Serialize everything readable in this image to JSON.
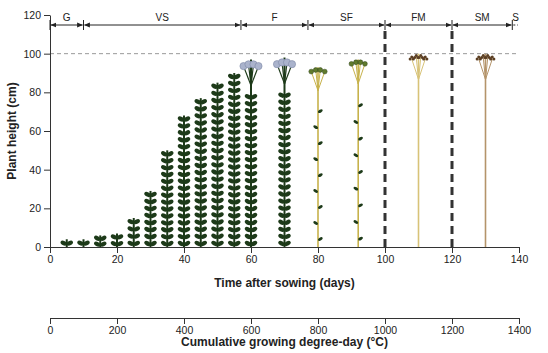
{
  "chart_data": {
    "type": "bar",
    "x_label": "Time after sowing (days)",
    "y_label": "Plant height (cm)",
    "xlim": [
      0,
      140
    ],
    "xticks": [
      0,
      20,
      40,
      60,
      80,
      100,
      120,
      140
    ],
    "ylim": [
      0,
      120
    ],
    "yticks": [
      0,
      20,
      40,
      60,
      80,
      100,
      120
    ],
    "x2_label": "Cumulative growing degree-day (°C)",
    "x2lim": [
      0,
      1400
    ],
    "x2ticks": [
      0,
      200,
      400,
      600,
      800,
      1000,
      1200,
      1400
    ],
    "grid": false,
    "series": [
      {
        "color": "#1d3a19",
        "marker": "leaves",
        "x": [
          5,
          10,
          15,
          20,
          25,
          30,
          35,
          40,
          45,
          50,
          55
        ],
        "values": [
          4,
          4,
          6,
          7,
          15,
          29,
          50,
          68,
          77,
          85,
          90
        ]
      },
      {
        "color": "#1d3a19",
        "marker": "flowers",
        "x": [
          60,
          70
        ],
        "values": [
          97,
          98
        ]
      },
      {
        "color": "#c7b24c",
        "marker": "capsules",
        "x": [
          80,
          92
        ],
        "values": [
          93,
          97
        ]
      },
      {
        "color": "#d8c378",
        "marker": "seeds",
        "x": [
          110
        ],
        "values": [
          100
        ]
      },
      {
        "color": "#b4946a",
        "marker": "seeds",
        "x": [
          130
        ],
        "values": [
          100
        ]
      }
    ],
    "stages": [
      {
        "label": "G",
        "start": 0,
        "end": 10
      },
      {
        "label": "VS",
        "start": 10,
        "end": 57
      },
      {
        "label": "F",
        "start": 57,
        "end": 77
      },
      {
        "label": "SF",
        "start": 77,
        "end": 100
      },
      {
        "label": "FM",
        "start": 100,
        "end": 120
      },
      {
        "label": "SM",
        "start": 120,
        "end": 138
      },
      {
        "label": "S",
        "start": 138,
        "end": 140,
        "line_style": "dotted"
      }
    ],
    "reference_lines": {
      "x": [
        100,
        120
      ],
      "y": [
        100
      ]
    }
  }
}
